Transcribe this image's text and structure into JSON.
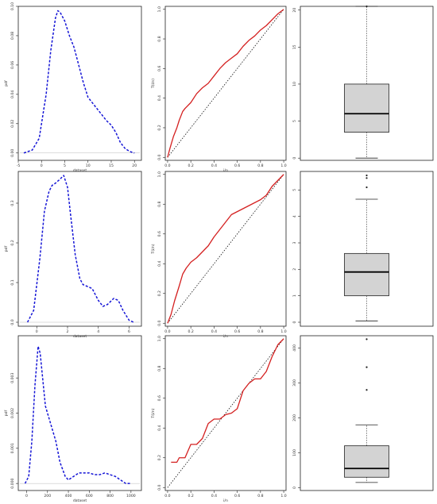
{
  "figure": {
    "colors": {
      "density": "#1515d6",
      "ttt": "#d42020",
      "diag": "#111111",
      "box_fill": "#d3d3d3",
      "frame": "#222222",
      "baseline": "#bbbbbb"
    }
  },
  "chart_data": [
    {
      "id": "density-1",
      "type": "line",
      "style": "dashed",
      "xlabel": "dataset",
      "ylabel": "pdf",
      "xlim": [
        -5,
        21.5
      ],
      "ylim": [
        -0.005,
        0.1
      ],
      "xticks": [
        -5,
        0,
        5,
        10,
        15,
        20
      ],
      "xtick_labels": [
        "-5",
        "0",
        "5",
        "10",
        "15",
        "20"
      ],
      "yticks": [
        0,
        0.02,
        0.04,
        0.06,
        0.08,
        0.1
      ],
      "ytick_labels": [
        "0.00",
        "0.02",
        "0.04",
        "0.06",
        "0.08",
        "0.10"
      ],
      "x": [
        -3.8,
        -2,
        -0.5,
        1,
        2,
        3,
        3.5,
        4,
        5,
        6,
        7,
        8,
        9,
        10,
        11,
        12,
        13,
        14,
        15,
        16,
        17,
        18,
        19,
        20
      ],
      "y": [
        0.0,
        0.002,
        0.01,
        0.04,
        0.07,
        0.092,
        0.097,
        0.096,
        0.09,
        0.08,
        0.072,
        0.06,
        0.048,
        0.038,
        0.034,
        0.03,
        0.026,
        0.022,
        0.019,
        0.014,
        0.007,
        0.003,
        0.001,
        0.0
      ]
    },
    {
      "id": "ttt-1",
      "type": "line",
      "style": "step",
      "xlabel": "i/n",
      "ylabel": "T(i/n)",
      "xlim": [
        -0.02,
        1.02
      ],
      "ylim": [
        -0.02,
        1.02
      ],
      "xticks": [
        0,
        0.2,
        0.4,
        0.6,
        0.8,
        1
      ],
      "xtick_labels": [
        "0.0",
        "0.2",
        "0.4",
        "0.6",
        "0.8",
        "1.0"
      ],
      "yticks": [
        0,
        0.2,
        0.4,
        0.6,
        0.8,
        1
      ],
      "ytick_labels": [
        "0.0",
        "0.2",
        "0.4",
        "0.6",
        "0.8",
        "1.0"
      ],
      "x": [
        0,
        0.02,
        0.05,
        0.08,
        0.1,
        0.13,
        0.15,
        0.2,
        0.25,
        0.3,
        0.35,
        0.4,
        0.45,
        0.5,
        0.55,
        0.6,
        0.65,
        0.7,
        0.75,
        0.8,
        0.85,
        0.9,
        0.95,
        1.0
      ],
      "y": [
        0,
        0.06,
        0.14,
        0.2,
        0.25,
        0.31,
        0.33,
        0.37,
        0.43,
        0.47,
        0.5,
        0.55,
        0.6,
        0.64,
        0.67,
        0.7,
        0.75,
        0.79,
        0.82,
        0.86,
        0.89,
        0.93,
        0.97,
        1.0
      ],
      "reference_line": [
        [
          0,
          0
        ],
        [
          1,
          1
        ]
      ]
    },
    {
      "id": "box-1",
      "type": "box",
      "ylim": [
        -0.3,
        20.5
      ],
      "yticks": [
        0,
        5,
        10,
        15,
        20
      ],
      "ytick_labels": [
        "0",
        "5",
        "10",
        "15",
        "20"
      ],
      "whisker_low": 0.0,
      "q1": 3.5,
      "median": 6.0,
      "q3": 10.0,
      "whisker_high": 20.5,
      "outliers": [
        20.5
      ]
    },
    {
      "id": "density-2",
      "type": "line",
      "style": "dashed",
      "xlabel": "dataset",
      "ylabel": "pdf",
      "xlim": [
        -1.2,
        6.8
      ],
      "ylim": [
        -0.01,
        0.38
      ],
      "xticks": [
        0,
        2,
        4,
        6
      ],
      "xtick_labels": [
        "0",
        "2",
        "4",
        "6"
      ],
      "yticks": [
        0,
        0.1,
        0.2,
        0.3
      ],
      "ytick_labels": [
        "0.0",
        "0.1",
        "0.2",
        "0.3"
      ],
      "x": [
        -0.6,
        -0.2,
        0.2,
        0.5,
        0.8,
        1.0,
        1.2,
        1.5,
        1.75,
        2.0,
        2.2,
        2.5,
        2.8,
        3.0,
        3.3,
        3.6,
        4.0,
        4.3,
        4.6,
        5.0,
        5.3,
        5.6,
        6.0,
        6.3
      ],
      "y": [
        0.0,
        0.03,
        0.16,
        0.28,
        0.33,
        0.345,
        0.35,
        0.36,
        0.37,
        0.34,
        0.27,
        0.17,
        0.11,
        0.095,
        0.09,
        0.085,
        0.055,
        0.04,
        0.045,
        0.06,
        0.055,
        0.03,
        0.005,
        0.0
      ]
    },
    {
      "id": "ttt-2",
      "type": "line",
      "style": "step",
      "xlabel": "i/n",
      "ylabel": "T(i/n)",
      "xlim": [
        -0.02,
        1.02
      ],
      "ylim": [
        -0.02,
        1.02
      ],
      "xticks": [
        0,
        0.2,
        0.4,
        0.6,
        0.8,
        1
      ],
      "xtick_labels": [
        "0.0",
        "0.2",
        "0.4",
        "0.6",
        "0.8",
        "1.0"
      ],
      "yticks": [
        0,
        0.2,
        0.4,
        0.6,
        0.8,
        1
      ],
      "ytick_labels": [
        "0.0",
        "0.2",
        "0.4",
        "0.6",
        "0.8",
        "1.0"
      ],
      "x": [
        0,
        0.03,
        0.06,
        0.1,
        0.13,
        0.16,
        0.2,
        0.25,
        0.3,
        0.35,
        0.4,
        0.45,
        0.5,
        0.55,
        0.6,
        0.65,
        0.7,
        0.75,
        0.8,
        0.85,
        0.9,
        0.95,
        1.0
      ],
      "y": [
        0,
        0.06,
        0.15,
        0.25,
        0.33,
        0.37,
        0.41,
        0.44,
        0.48,
        0.52,
        0.58,
        0.63,
        0.68,
        0.73,
        0.75,
        0.77,
        0.79,
        0.81,
        0.83,
        0.86,
        0.92,
        0.96,
        1.0
      ],
      "reference_line": [
        [
          0,
          0
        ],
        [
          1,
          1
        ]
      ]
    },
    {
      "id": "box-2",
      "type": "box",
      "ylim": [
        -0.15,
        5.7
      ],
      "yticks": [
        0,
        1,
        2,
        3,
        4,
        5
      ],
      "ytick_labels": [
        "0",
        "1",
        "2",
        "3",
        "4",
        "5"
      ],
      "whisker_low": 0.05,
      "q1": 1.0,
      "median": 1.9,
      "q3": 2.6,
      "whisker_high": 4.65,
      "outliers": [
        5.1,
        5.45,
        5.55
      ]
    },
    {
      "id": "density-3",
      "type": "line",
      "style": "dashed",
      "xlabel": "dataset",
      "ylabel": "pdf",
      "xlim": [
        -80,
        1100
      ],
      "ylim": [
        -0.0002,
        0.0042
      ],
      "xticks": [
        0,
        200,
        400,
        600,
        800,
        1000
      ],
      "xtick_labels": [
        "0",
        "200",
        "400",
        "600",
        "800",
        "1000"
      ],
      "yticks": [
        0,
        0.001,
        0.002,
        0.003
      ],
      "ytick_labels": [
        "0.000",
        "0.001",
        "0.002",
        "0.003"
      ],
      "x": [
        -15,
        20,
        50,
        80,
        110,
        130,
        150,
        180,
        230,
        280,
        320,
        370,
        400,
        450,
        500,
        550,
        600,
        650,
        700,
        750,
        800,
        850,
        900,
        950,
        1000
      ],
      "y": [
        0.0,
        0.0002,
        0.0012,
        0.0028,
        0.0039,
        0.0037,
        0.0031,
        0.0022,
        0.0017,
        0.0012,
        0.0006,
        0.0002,
        0.0001,
        0.0002,
        0.0003,
        0.0003,
        0.0003,
        0.00025,
        0.00025,
        0.0003,
        0.00025,
        0.0002,
        0.0001,
        0.0,
        0.0
      ]
    },
    {
      "id": "ttt-3",
      "type": "line",
      "style": "step",
      "xlabel": "i/n",
      "ylabel": "T(i/n)",
      "xlim": [
        -0.02,
        1.02
      ],
      "ylim": [
        -0.02,
        1.02
      ],
      "xticks": [
        0,
        0.2,
        0.4,
        0.6,
        0.8,
        1
      ],
      "xtick_labels": [
        "0.0",
        "0.2",
        "0.4",
        "0.6",
        "0.8",
        "1.0"
      ],
      "yticks": [
        0,
        0.2,
        0.4,
        0.6,
        0.8,
        1
      ],
      "ytick_labels": [
        "0.0",
        "0.2",
        "0.4",
        "0.6",
        "0.8",
        "1.0"
      ],
      "x": [
        0.03,
        0.08,
        0.1,
        0.15,
        0.2,
        0.25,
        0.3,
        0.35,
        0.4,
        0.45,
        0.5,
        0.55,
        0.6,
        0.65,
        0.7,
        0.75,
        0.8,
        0.85,
        0.9,
        0.95,
        1.0
      ],
      "y": [
        0.17,
        0.17,
        0.2,
        0.2,
        0.29,
        0.29,
        0.33,
        0.43,
        0.46,
        0.46,
        0.49,
        0.5,
        0.53,
        0.65,
        0.7,
        0.73,
        0.73,
        0.78,
        0.88,
        0.96,
        1.0
      ],
      "reference_line": [
        [
          0,
          0
        ],
        [
          1,
          1
        ]
      ]
    },
    {
      "id": "box-3",
      "type": "box",
      "ylim": [
        -8,
        435
      ],
      "yticks": [
        0,
        100,
        200,
        300,
        400
      ],
      "ytick_labels": [
        "0",
        "100",
        "200",
        "300",
        "400"
      ],
      "whisker_low": 15,
      "q1": 30,
      "median": 55,
      "q3": 120,
      "whisker_high": 180,
      "outliers": [
        280,
        345,
        425
      ]
    }
  ]
}
